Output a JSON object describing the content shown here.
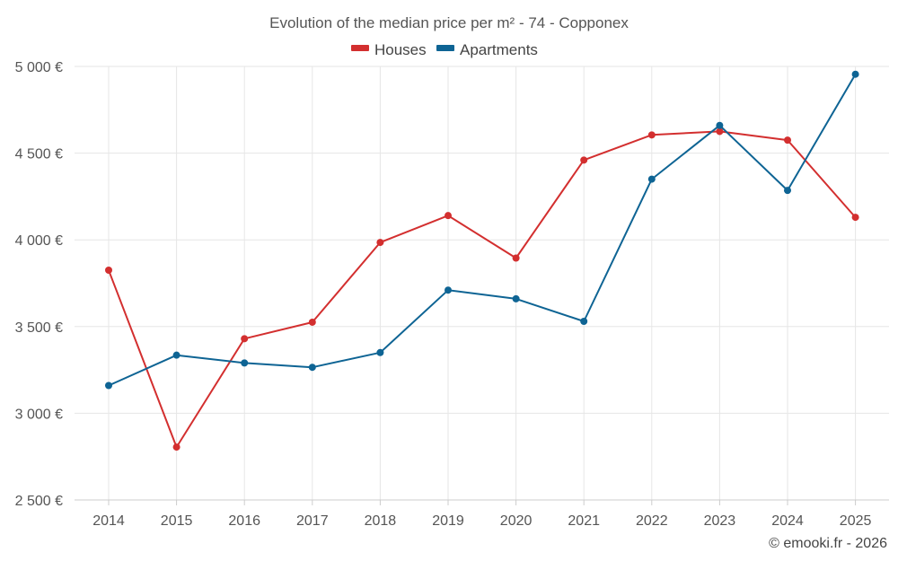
{
  "chart_data": {
    "type": "line",
    "title": "Evolution of the median price per m² - 74 - Copponex",
    "categories": [
      "2014",
      "2015",
      "2016",
      "2017",
      "2018",
      "2019",
      "2020",
      "2021",
      "2022",
      "2023",
      "2024",
      "2025"
    ],
    "series": [
      {
        "name": "Houses",
        "color": "#d32f2f",
        "values": [
          3825,
          2805,
          3430,
          3525,
          3985,
          4140,
          3895,
          4460,
          4605,
          4625,
          4575,
          4130
        ]
      },
      {
        "name": "Apartments",
        "color": "#0e6494",
        "values": [
          3160,
          3335,
          3290,
          3265,
          3350,
          3710,
          3660,
          3530,
          4350,
          4660,
          4285,
          4955
        ]
      }
    ],
    "y_ticks": [
      2500,
      3000,
      3500,
      4000,
      4500,
      5000
    ],
    "y_tick_labels": [
      "2 500 €",
      "3 000 €",
      "3 500 €",
      "4 000 €",
      "4 500 €",
      "5 000 €"
    ],
    "ylim": [
      2500,
      5000
    ],
    "xlabel": "",
    "ylabel": "",
    "legend_position": "top-center",
    "grid": true
  },
  "credit": "© emooki.fr - 2026"
}
